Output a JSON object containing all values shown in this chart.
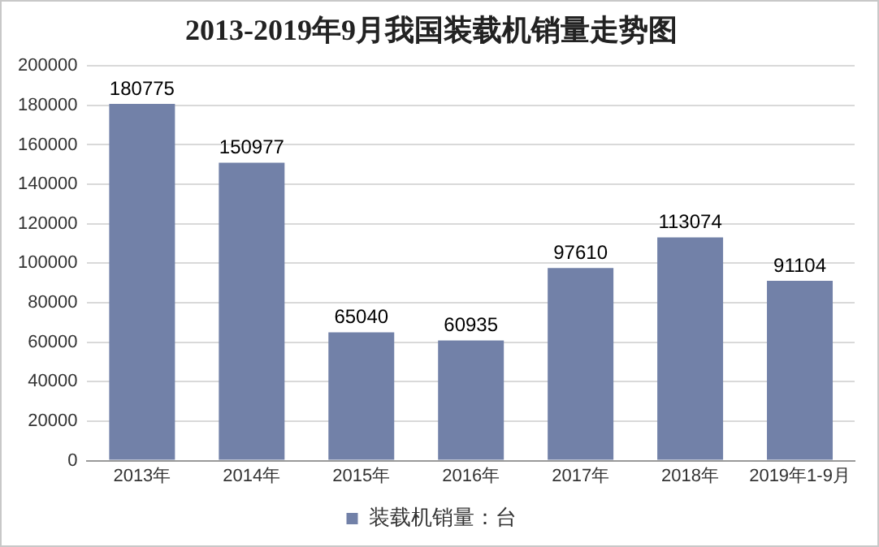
{
  "chart_data": {
    "type": "bar",
    "title": "2013-2019年9月我国装载机销量走势图",
    "categories": [
      "2013年",
      "2014年",
      "2015年",
      "2016年",
      "2017年",
      "2018年",
      "2019年1-9月"
    ],
    "series": [
      {
        "name": "装载机销量：台",
        "color": "#7281a8",
        "values": [
          180775,
          150977,
          65040,
          60935,
          97610,
          113074,
          91104
        ]
      }
    ],
    "ylim": [
      0,
      200000
    ],
    "yticks": [
      0,
      20000,
      40000,
      60000,
      80000,
      100000,
      120000,
      140000,
      160000,
      180000,
      200000
    ],
    "grid": "y",
    "legend": "bottom",
    "data_labels": true
  }
}
